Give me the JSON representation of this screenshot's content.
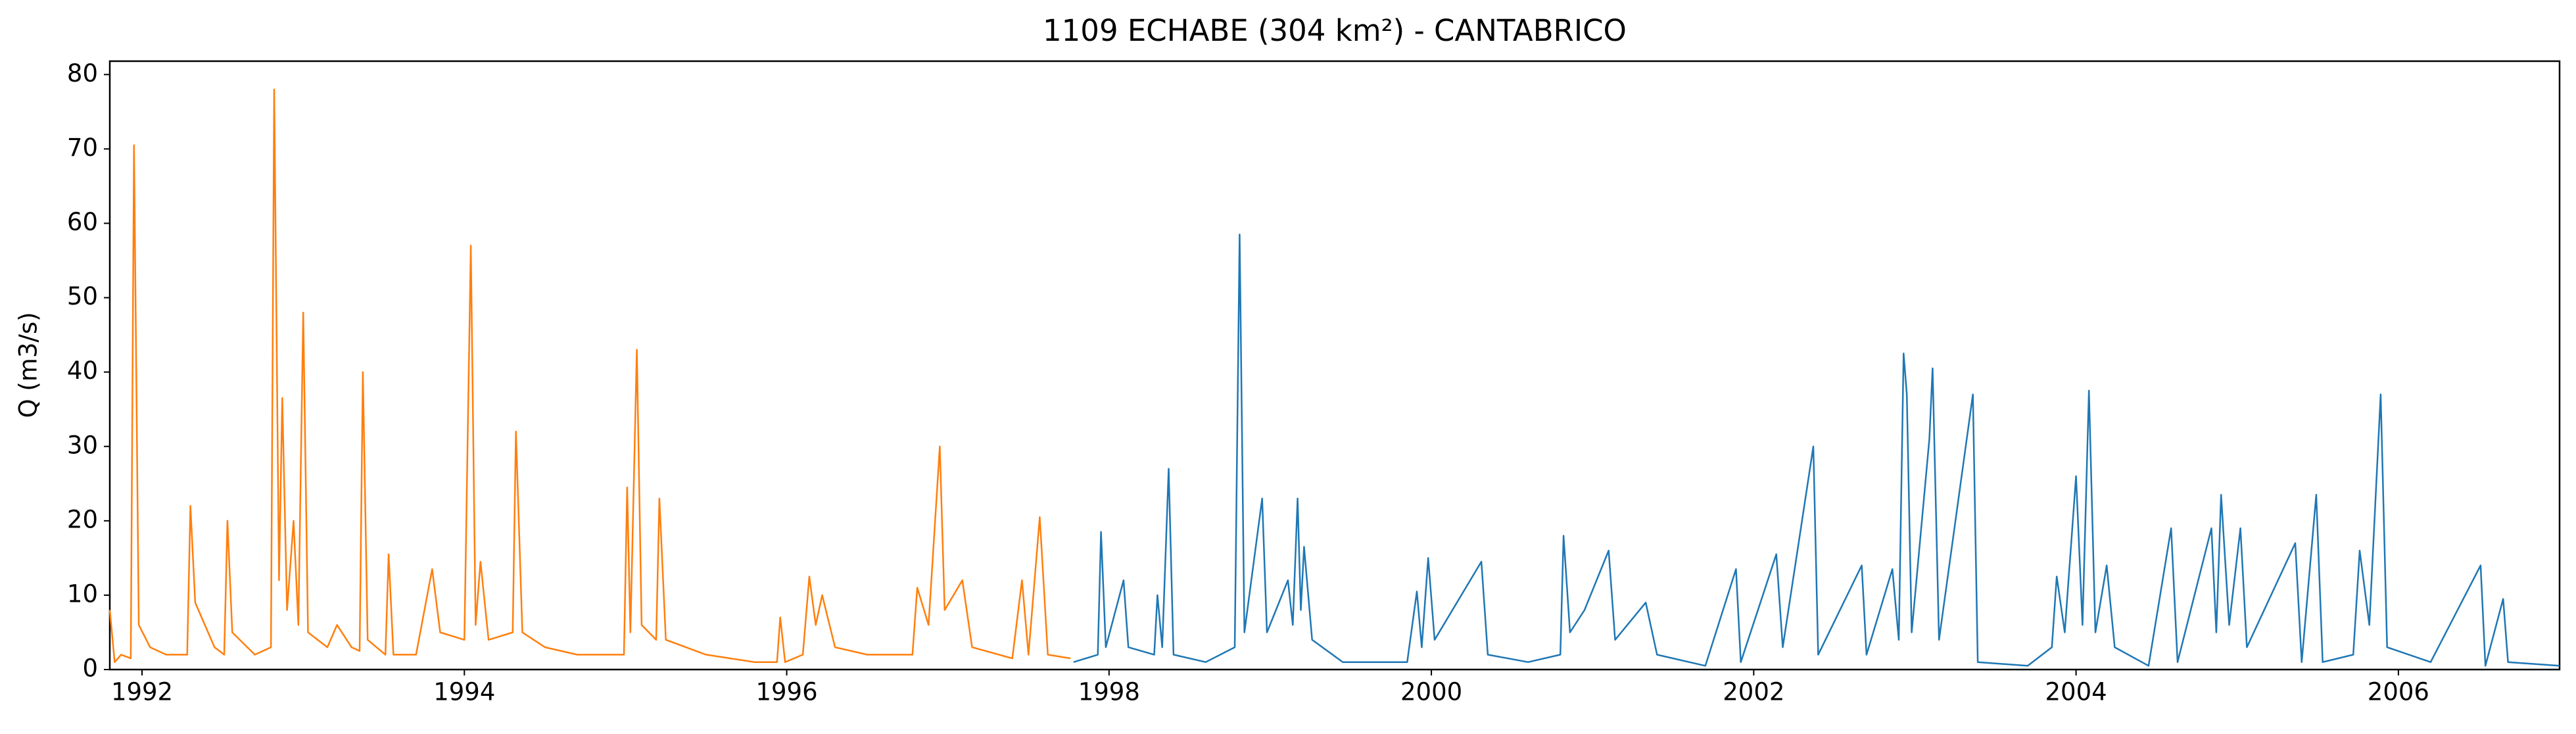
{
  "chart_data": {
    "type": "line",
    "title": "1109 ECHABE (304 km²) - CANTABRICO",
    "y_label": "Q (m3/s)",
    "xlim": [
      1991.8,
      2007.0
    ],
    "xticks": [
      1992,
      1994,
      1996,
      1998,
      2000,
      2002,
      2004,
      2006
    ],
    "ylim": [
      0,
      81.8
    ],
    "yticks": [
      0,
      10,
      20,
      30,
      40,
      50,
      60,
      70,
      80
    ],
    "grid": false,
    "series": [
      {
        "color": "#ff7f0e",
        "x": [
          1991.8,
          1991.83,
          1991.87,
          1991.93,
          1991.95,
          1991.98,
          1992.05,
          1992.15,
          1992.28,
          1992.3,
          1992.33,
          1992.45,
          1992.51,
          1992.53,
          1992.56,
          1992.7,
          1992.8,
          1992.82,
          1992.85,
          1992.87,
          1992.9,
          1992.94,
          1992.97,
          1993.0,
          1993.03,
          1993.15,
          1993.21,
          1993.3,
          1993.35,
          1993.37,
          1993.4,
          1993.51,
          1993.53,
          1993.56,
          1993.7,
          1993.8,
          1993.85,
          1994.0,
          1994.04,
          1994.07,
          1994.1,
          1994.15,
          1994.3,
          1994.32,
          1994.36,
          1994.5,
          1994.7,
          1994.99,
          1995.01,
          1995.03,
          1995.07,
          1995.1,
          1995.19,
          1995.21,
          1995.25,
          1995.5,
          1995.8,
          1995.94,
          1995.96,
          1995.99,
          1996.1,
          1996.14,
          1996.18,
          1996.22,
          1996.3,
          1996.5,
          1996.78,
          1996.81,
          1996.88,
          1996.95,
          1996.98,
          1997.09,
          1997.15,
          1997.4,
          1997.46,
          1997.5,
          1997.57,
          1997.62,
          1997.76
        ],
        "values": [
          8,
          1,
          2,
          1.5,
          70.5,
          6,
          3,
          2,
          2,
          22,
          9,
          3,
          2,
          20,
          5,
          2,
          3,
          78,
          12,
          36.5,
          8,
          20,
          6,
          48,
          5,
          3,
          6,
          3,
          2.5,
          40,
          4,
          2,
          15.5,
          2,
          2,
          13.5,
          5,
          4,
          57,
          6,
          14.5,
          4,
          5,
          32,
          5,
          3,
          2,
          2,
          24.5,
          5,
          43,
          6,
          4,
          23,
          4,
          2,
          1,
          1,
          7,
          1,
          2,
          12.5,
          6,
          10,
          3,
          2,
          2,
          11,
          6,
          30,
          8,
          12,
          3,
          1.5,
          12,
          2,
          20.5,
          2,
          1.5
        ]
      },
      {
        "color": "#1f77b4",
        "x": [
          1997.78,
          1997.93,
          1997.95,
          1997.98,
          1998.09,
          1998.12,
          1998.28,
          1998.3,
          1998.33,
          1998.37,
          1998.4,
          1998.6,
          1998.78,
          1998.81,
          1998.84,
          1998.95,
          1998.98,
          1999.11,
          1999.14,
          1999.17,
          1999.19,
          1999.21,
          1999.26,
          1999.45,
          1999.85,
          1999.91,
          1999.94,
          1999.98,
          2000.02,
          2000.31,
          2000.35,
          2000.6,
          2000.8,
          2000.82,
          2000.86,
          2000.95,
          2001.1,
          2001.14,
          2001.33,
          2001.4,
          2001.7,
          2001.89,
          2001.92,
          2002.14,
          2002.18,
          2002.37,
          2002.4,
          2002.67,
          2002.7,
          2002.86,
          2002.9,
          2002.93,
          2002.95,
          2002.98,
          2003.09,
          2003.11,
          2003.15,
          2003.36,
          2003.39,
          2003.7,
          2003.85,
          2003.88,
          2003.93,
          2004.0,
          2004.04,
          2004.08,
          2004.12,
          2004.19,
          2004.24,
          2004.45,
          2004.59,
          2004.63,
          2004.84,
          2004.87,
          2004.9,
          2004.95,
          2005.02,
          2005.06,
          2005.36,
          2005.4,
          2005.49,
          2005.53,
          2005.72,
          2005.76,
          2005.82,
          2005.89,
          2005.93,
          2006.2,
          2006.51,
          2006.54,
          2006.65,
          2006.68,
          2007.0
        ],
        "values": [
          1,
          2,
          18.5,
          3,
          12,
          3,
          2,
          10,
          3,
          27,
          2,
          1,
          3,
          58.5,
          5,
          23,
          5,
          12,
          6,
          23,
          8,
          16.5,
          4,
          1,
          1,
          10.5,
          3,
          15,
          4,
          14.5,
          2,
          1,
          2,
          18,
          5,
          8,
          16,
          4,
          9,
          2,
          0.5,
          13.5,
          1,
          15.5,
          3,
          30,
          2,
          14,
          2,
          13.5,
          4,
          42.5,
          37,
          5,
          31,
          40.5,
          4,
          37,
          1,
          0.5,
          3,
          12.5,
          5,
          26,
          6,
          37.5,
          5,
          14,
          3,
          0.5,
          19,
          1,
          19,
          5,
          23.5,
          6,
          19,
          3,
          17,
          1,
          23.5,
          1,
          2,
          16,
          6,
          37,
          3,
          1,
          14,
          0.5,
          9.5,
          1,
          0.5
        ]
      }
    ]
  }
}
